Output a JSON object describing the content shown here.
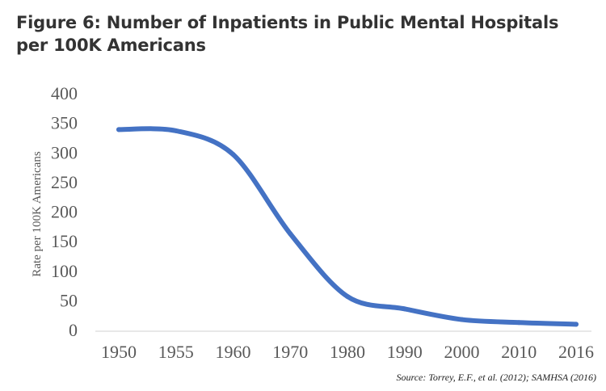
{
  "title": "Figure 6: Number of Inpatients in Public Mental Hospitals per 100K Americans",
  "source": "Source: Torrey, E.F., et al. (2012); SAMHSA (2016)",
  "colors": {
    "series_line": "#4472C4",
    "axis_line": "#D9D9D9",
    "tick_text": "#595959",
    "title_text": "#333333"
  },
  "chart_data": {
    "type": "line",
    "title": "Figure 6: Number of Inpatients in Public Mental Hospitals per 100K Americans",
    "xlabel": "",
    "ylabel": "Rate per 100K Americans",
    "categories": [
      "1950",
      "1955",
      "1960",
      "1970",
      "1980",
      "1990",
      "2000",
      "2010",
      "2016"
    ],
    "series": [
      {
        "values": [
          338,
          336,
          296,
          162,
          56,
          35,
          17,
          12,
          9
        ]
      }
    ],
    "ylim": [
      0,
      400
    ],
    "yticks": [
      0,
      50,
      100,
      150,
      200,
      250,
      300,
      350,
      400
    ],
    "grid": false,
    "legend": "none"
  }
}
